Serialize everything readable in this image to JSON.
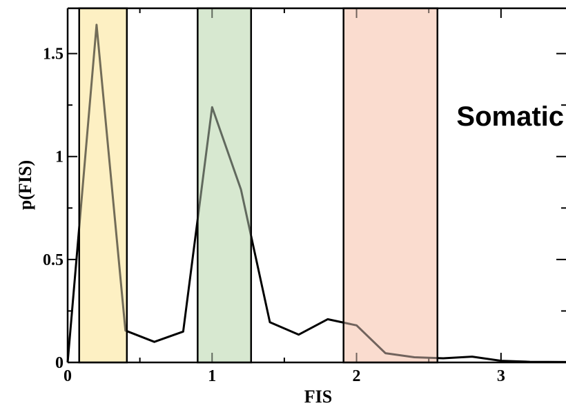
{
  "chart_data": {
    "type": "line",
    "title": "",
    "xlabel": "FIS",
    "ylabel": "p(FIS)",
    "annotation": "Somatic",
    "xlim": [
      0,
      3.45
    ],
    "ylim": [
      0,
      1.72
    ],
    "x_ticks": [
      0,
      1,
      2,
      3
    ],
    "x_tick_labels": [
      "0",
      "1",
      "2",
      "3"
    ],
    "y_ticks": [
      0,
      0.5,
      1,
      1.5
    ],
    "y_tick_labels": [
      "0",
      "0.5",
      "1",
      "1.5"
    ],
    "grid": false,
    "series": [
      {
        "color": "#000000",
        "x": [
          0.0,
          0.2,
          0.4,
          0.6,
          0.8,
          1.0,
          1.2,
          1.4,
          1.6,
          1.8,
          2.0,
          2.2,
          2.4,
          2.6,
          2.8,
          3.0,
          3.2,
          3.45
        ],
        "y": [
          0.0,
          1.64,
          0.155,
          0.1,
          0.15,
          1.24,
          0.84,
          0.195,
          0.135,
          0.21,
          0.18,
          0.045,
          0.025,
          0.02,
          0.028,
          0.008,
          0.003,
          0.002
        ]
      }
    ],
    "highlight_bands": [
      {
        "x0": 0.08,
        "x1": 0.41,
        "fill": "#fdf0c4"
      },
      {
        "x0": 0.9,
        "x1": 1.27,
        "fill": "#d7e8d0"
      },
      {
        "x0": 1.91,
        "x1": 2.56,
        "fill": "#fadccf"
      }
    ]
  }
}
